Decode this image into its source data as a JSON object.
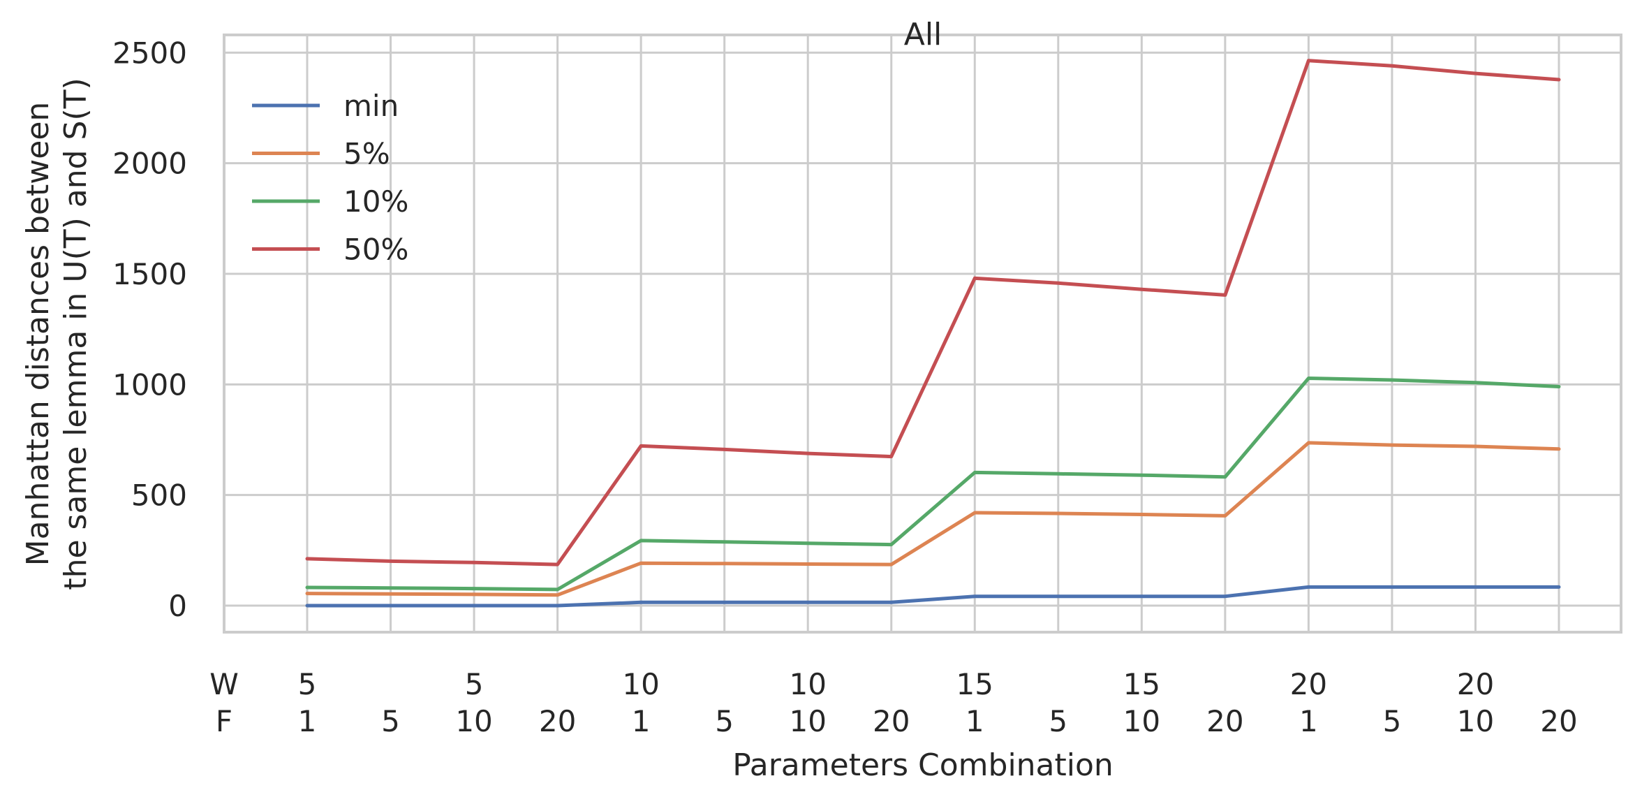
{
  "chart_data": {
    "type": "line",
    "title": "All",
    "xlabel": "Parameters Combination",
    "ylabel_lines": [
      "Manhattan distances between",
      "the same lemma in U(T) and S(T)"
    ],
    "row_labels": [
      "W",
      "F"
    ],
    "x_W_labels": [
      "5",
      "",
      "5",
      "",
      "10",
      "",
      "10",
      "",
      "15",
      "",
      "15",
      "",
      "20",
      "",
      "20",
      ""
    ],
    "x_F_labels": [
      "1",
      "5",
      "10",
      "20",
      "1",
      "5",
      "10",
      "20",
      "1",
      "5",
      "10",
      "20",
      "1",
      "5",
      "10",
      "20"
    ],
    "yticks": [
      0,
      500,
      1000,
      1500,
      2000,
      2500
    ],
    "ylim": [
      -120,
      2580
    ],
    "grid": true,
    "legend_position": "upper-left",
    "series": [
      {
        "name": "min",
        "color": "#4c72b0",
        "values": [
          0,
          0,
          0,
          0,
          15,
          15,
          15,
          15,
          42,
          42,
          42,
          42,
          84,
          84,
          84,
          84
        ]
      },
      {
        "name": "5%",
        "color": "#dd8452",
        "values": [
          55,
          53,
          51,
          48,
          192,
          190,
          188,
          186,
          420,
          417,
          412,
          406,
          736,
          726,
          720,
          708
        ]
      },
      {
        "name": "10%",
        "color": "#55a868",
        "values": [
          82,
          80,
          77,
          73,
          294,
          288,
          282,
          276,
          602,
          596,
          590,
          582,
          1028,
          1020,
          1008,
          990
        ]
      },
      {
        "name": "50%",
        "color": "#c44e52",
        "values": [
          212,
          201,
          195,
          186,
          722,
          706,
          688,
          674,
          1480,
          1458,
          1430,
          1404,
          2464,
          2440,
          2406,
          2378
        ]
      }
    ]
  }
}
